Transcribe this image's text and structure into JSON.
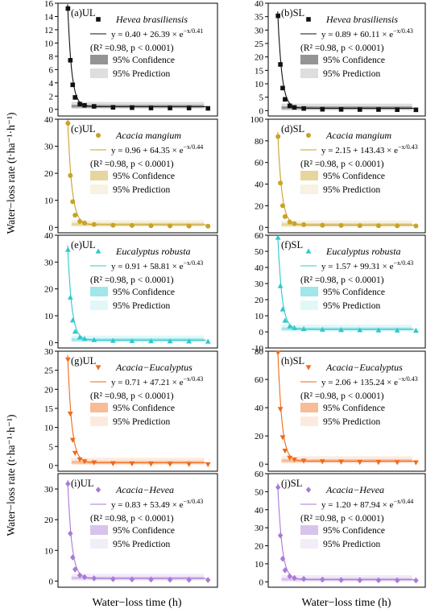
{
  "figure": {
    "ylabel": "Water−loss rate (t·ha⁻¹·h⁻¹)",
    "xlabel": "Water−loss time (h)",
    "legend_labels": {
      "confidence": "95% Confidence",
      "prediction": "95% Prediction"
    }
  },
  "chart_data": [
    {
      "id": "a",
      "panel": "(a)UL",
      "species": "Hevea brasiliensis",
      "type": "scatter",
      "color": "#111111",
      "equation": "y = 0.40 + 26.39 × e⁻ˣᐟ⁰·⁴¹",
      "eq_main": "y = 0.40 + 26.39 × e",
      "eq_exp": "−x/0.41",
      "fit": {
        "a": 0.4,
        "b": 26.39,
        "c": 0.41
      },
      "stats": "(R² =0.98, p < 0.0001)",
      "ylim": [
        -1,
        16
      ],
      "yticks": [
        0,
        2,
        4,
        6,
        8,
        10,
        12,
        14,
        16
      ],
      "x": [
        0.25,
        0.5,
        0.75,
        1,
        1.5,
        2,
        3,
        5,
        7,
        9,
        11,
        13,
        15
      ],
      "y": [
        15.2,
        7.4,
        3.7,
        1.8,
        0.8,
        0.6,
        0.45,
        0.3,
        0.25,
        0.2,
        0.2,
        0.2,
        0.15
      ]
    },
    {
      "id": "b",
      "panel": "(b)SL",
      "species": "Hevea brasiliensis",
      "type": "scatter",
      "color": "#111111",
      "equation": "y = 0.89 + 60.11 × e^(−x/0.43)",
      "eq_main": "y = 0.89 + 60.11 × e",
      "eq_exp": "−x/0.43",
      "fit": {
        "a": 0.89,
        "b": 60.11,
        "c": 0.43
      },
      "stats": "(R² =0.98, p < 0.0001)",
      "ylim": [
        -2,
        40
      ],
      "yticks": [
        0,
        5,
        10,
        15,
        20,
        25,
        30,
        35,
        40
      ],
      "x": [
        0.25,
        0.5,
        0.75,
        1,
        1.5,
        2,
        3,
        5,
        7,
        9,
        11,
        13,
        15
      ],
      "y": [
        35.3,
        17.2,
        8.4,
        4.2,
        1.8,
        1.2,
        0.8,
        0.5,
        0.45,
        0.4,
        0.4,
        0.35,
        0.3
      ]
    },
    {
      "id": "c",
      "panel": "(c)UL",
      "species": "Acacia mangium",
      "type": "scatter",
      "color": "#c9a227",
      "equation": "y = 0.96 + 64.35 × e^(−x/0.44)",
      "eq_main": "y = 0.96 + 64.35 × e",
      "eq_exp": "−x/0.44",
      "fit": {
        "a": 0.96,
        "b": 64.35,
        "c": 0.44
      },
      "stats": "(R² =0.98, p < 0.0001)",
      "ylim": [
        -2,
        40
      ],
      "yticks": [
        0,
        10,
        20,
        30,
        40
      ],
      "x": [
        0.25,
        0.5,
        0.75,
        1,
        1.5,
        2,
        3,
        5,
        7,
        9,
        11,
        13,
        15
      ],
      "y": [
        38.5,
        19.2,
        9.5,
        4.5,
        2.2,
        1.6,
        1.1,
        0.8,
        0.7,
        0.6,
        0.55,
        0.5,
        0.45
      ]
    },
    {
      "id": "d",
      "panel": "(d)SL",
      "species": "Acacia mangium",
      "type": "scatter",
      "color": "#c9a227",
      "equation": "y = 2.15 + 143.43 × e^(−x/0.43)",
      "eq_main": "y = 2.15 + 143.43 × e",
      "eq_exp": "−x/0.43",
      "fit": {
        "a": 2.15,
        "b": 143.43,
        "c": 0.43
      },
      "stats": "(R² =0.98, p < 0.0001)",
      "ylim": [
        -5,
        100
      ],
      "yticks": [
        0,
        20,
        40,
        60,
        80,
        100
      ],
      "x": [
        0.25,
        0.5,
        0.75,
        1,
        1.5,
        2,
        3,
        5,
        7,
        9,
        11,
        13,
        15
      ],
      "y": [
        84,
        41,
        20,
        10,
        5,
        3.5,
        2.5,
        2,
        1.8,
        1.6,
        1.5,
        1.4,
        1.3
      ]
    },
    {
      "id": "e",
      "panel": "(e)UL",
      "species": "Eucalyptus robusta",
      "type": "scatter",
      "color": "#2ec8cc",
      "equation": "y = 0.91 + 58.81 × e^(−x/0.43)",
      "eq_main": "y = 0.91 + 58.81 × e",
      "eq_exp": "−x/0.43",
      "fit": {
        "a": 0.91,
        "b": 58.81,
        "c": 0.43
      },
      "stats": "(R² =0.98, p < 0.0001)",
      "ylim": [
        -2,
        40
      ],
      "yticks": [
        0,
        10,
        20,
        30,
        40
      ],
      "x": [
        0.25,
        0.5,
        0.75,
        1,
        1.5,
        2,
        3,
        5,
        7,
        9,
        11,
        13,
        15
      ],
      "y": [
        34.6,
        16.8,
        8.3,
        4.1,
        2,
        1.4,
        1,
        0.7,
        0.6,
        0.55,
        0.5,
        0.45,
        0.4
      ]
    },
    {
      "id": "f",
      "panel": "(f)SL",
      "species": "Eucalyptus robusta",
      "type": "scatter",
      "color": "#2ec8cc",
      "equation": "y = 1.57 + 99.31 × e^(−x/0.43)",
      "eq_main": "y = 1.57 + 99.31 × e",
      "eq_exp": "−x/0.43",
      "fit": {
        "a": 1.57,
        "b": 99.31,
        "c": 0.43
      },
      "stats": "(R² =0.98, p < 0.0001)",
      "ylim": [
        -10,
        60
      ],
      "yticks": [
        -10,
        0,
        10,
        20,
        30,
        40,
        50,
        60
      ],
      "x": [
        0.25,
        0.5,
        0.75,
        1,
        1.5,
        2,
        3,
        5,
        7,
        9,
        11,
        13,
        15
      ],
      "y": [
        58.5,
        28.5,
        14,
        7,
        3.4,
        2.4,
        1.8,
        1.4,
        1.2,
        1.1,
        1,
        0.9,
        0.8
      ]
    },
    {
      "id": "g",
      "panel": "(g)UL",
      "species": "Acacia−Eucalyptus",
      "type": "scatter",
      "color": "#ee6a1a",
      "equation": "y = 0.71 + 47.21 × e^(−x/0.43)",
      "eq_main": "y = 0.71 + 47.21 × e",
      "eq_exp": "−x/0.43",
      "fit": {
        "a": 0.71,
        "b": 47.21,
        "c": 0.43
      },
      "stats": "(R² =0.98, p < 0.0001)",
      "ylim": [
        -1.5,
        30
      ],
      "yticks": [
        0,
        5,
        10,
        15,
        20,
        25,
        30
      ],
      "x": [
        0.25,
        0.5,
        0.75,
        1,
        1.5,
        2,
        3,
        5,
        7,
        9,
        11,
        13,
        15
      ],
      "y": [
        27.8,
        13.6,
        6.7,
        3.3,
        1.6,
        1.1,
        0.8,
        0.55,
        0.5,
        0.45,
        0.4,
        0.35,
        0.3
      ]
    },
    {
      "id": "h",
      "panel": "(h)SL",
      "species": "Acacia−Eucalyptus",
      "type": "scatter",
      "color": "#ee6a1a",
      "equation": "y = 2.06 + 135.24 × e^(−x/0.43)",
      "eq_main": "y = 2.06 + 135.24 × e",
      "eq_exp": "−x/0.43",
      "fit": {
        "a": 2.06,
        "b": 135.24,
        "c": 0.43
      },
      "stats": "(R² =0.98, p < 0.0001)",
      "ylim": [
        -5,
        80
      ],
      "yticks": [
        0,
        20,
        40,
        60,
        80
      ],
      "x": [
        0.25,
        0.5,
        0.75,
        1,
        1.5,
        2,
        3,
        5,
        7,
        9,
        11,
        13,
        15
      ],
      "y": [
        79,
        39,
        19,
        9.5,
        4.5,
        3.2,
        2.4,
        1.9,
        1.7,
        1.5,
        1.4,
        1.3,
        1.2
      ]
    },
    {
      "id": "i",
      "panel": "(i)UL",
      "species": "Acacia−Hevea",
      "type": "scatter",
      "color": "#a97ad6",
      "equation": "y = 0.83 + 53.49 × e^(−x/0.43)",
      "eq_main": "y = 0.83 + 53.49 × e",
      "eq_exp": "−x/0.43",
      "fit": {
        "a": 0.83,
        "b": 53.49,
        "c": 0.43
      },
      "stats": "(R² =0.98, p < 0.0001)",
      "ylim": [
        -2,
        35
      ],
      "yticks": [
        0,
        10,
        20,
        30
      ],
      "x": [
        0.25,
        0.5,
        0.75,
        1,
        1.5,
        2,
        3,
        5,
        7,
        9,
        11,
        13,
        15
      ],
      "y": [
        31.7,
        15.5,
        7.7,
        3.8,
        1.9,
        1.3,
        0.9,
        0.65,
        0.55,
        0.5,
        0.45,
        0.4,
        0.35
      ]
    },
    {
      "id": "j",
      "panel": "(j)SL",
      "species": "Acacia−Hevea",
      "type": "scatter",
      "color": "#a97ad6",
      "equation": "y = 1.20 + 87.94 × e^(−x/0.44)",
      "eq_main": "y = 1.20 + 87.94 × e",
      "eq_exp": "−x/0.44",
      "fit": {
        "a": 1.2,
        "b": 87.94,
        "c": 0.44
      },
      "stats": "(R² =0.98, p < 0.0001)",
      "ylim": [
        -3,
        60
      ],
      "yticks": [
        0,
        10,
        20,
        30,
        40,
        50,
        60
      ],
      "x": [
        0.25,
        0.5,
        0.75,
        1,
        1.5,
        2,
        3,
        5,
        7,
        9,
        11,
        13,
        15
      ],
      "y": [
        52.4,
        25.7,
        12.8,
        6.4,
        3.1,
        2.1,
        1.6,
        1.2,
        1.0,
        0.9,
        0.85,
        0.8,
        0.75
      ]
    }
  ]
}
